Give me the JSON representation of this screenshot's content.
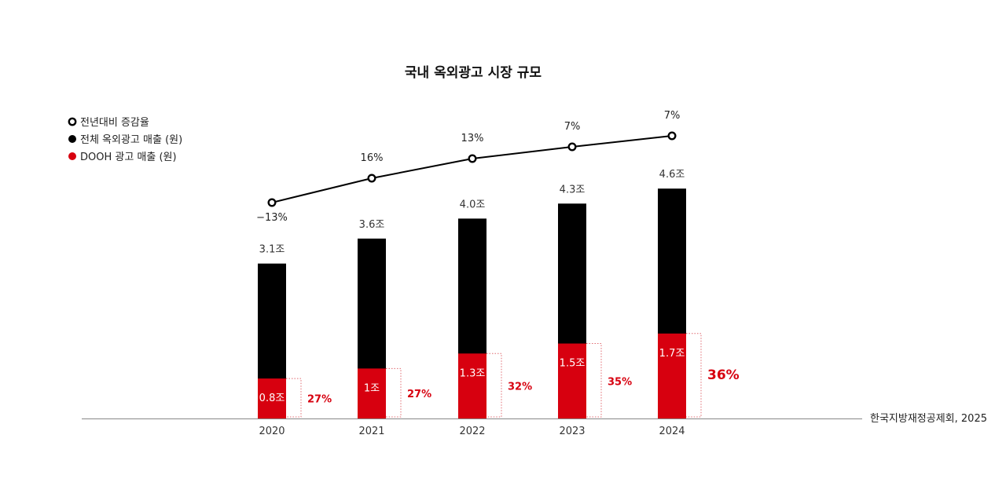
{
  "chart_data": {
    "type": "bar",
    "title": "국내 옥외광고 시장 규모",
    "categories": [
      "2020",
      "2021",
      "2022",
      "2023",
      "2024"
    ],
    "series": [
      {
        "name": "전체 옥외광고 매출 (원)",
        "kind": "bar",
        "values": [
          3.1,
          3.6,
          4.0,
          4.3,
          4.6
        ],
        "labels": [
          "3.1조",
          "3.6조",
          "4.0조",
          "4.3조",
          "4.6조"
        ]
      },
      {
        "name": "DOOH 광고 매출 (원)",
        "kind": "bar-overlay",
        "values": [
          0.8,
          1.0,
          1.3,
          1.5,
          1.7
        ],
        "labels": [
          "0.8조",
          "1조",
          "1.3조",
          "1.5조",
          "1.7조"
        ]
      },
      {
        "name": "전년대비 증감율",
        "kind": "line",
        "values": [
          -13,
          16,
          13,
          7,
          7
        ],
        "labels": [
          "−13%",
          "16%",
          "13%",
          "7%",
          "7%"
        ]
      }
    ],
    "dooh_share": {
      "values": [
        27,
        27,
        32,
        35,
        36
      ],
      "labels": [
        "27%",
        "27%",
        "32%",
        "35%",
        "36%"
      ]
    },
    "ylim": [
      0,
      5
    ],
    "legend_position": "top-left",
    "grid": false
  },
  "source": "한국지방재정공제회, 2025",
  "colors": {
    "total": "#000000",
    "dooh": "#d7000f",
    "line": "#000000",
    "axis": "#888888",
    "bracket": "#e06a70"
  }
}
